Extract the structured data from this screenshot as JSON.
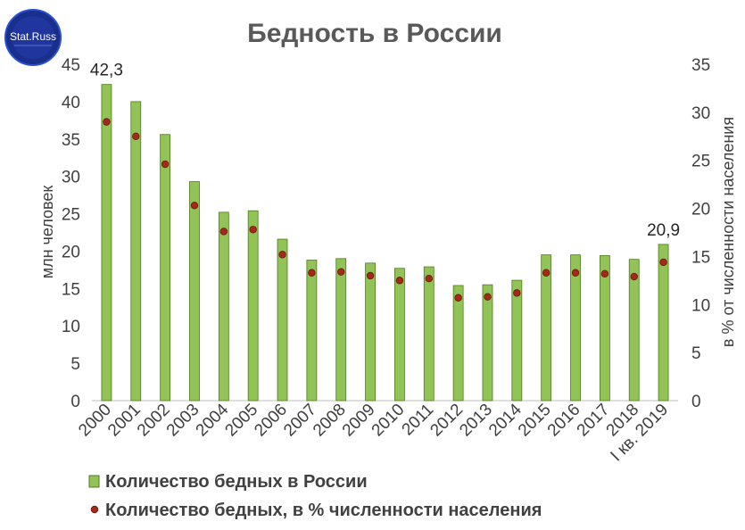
{
  "logo": {
    "text": "Stat.Russ"
  },
  "chart_data": {
    "type": "bar",
    "title": "Бедность в России",
    "categories": [
      "2000",
      "2001",
      "2002",
      "2003",
      "2004",
      "2005",
      "2006",
      "2007",
      "2008",
      "2009",
      "2010",
      "2011",
      "2012",
      "2013",
      "2014",
      "2015",
      "2016",
      "2017",
      "2018",
      "I кв. 2019"
    ],
    "series": [
      {
        "name": "Количество бедных в России",
        "kind": "bar",
        "axis": "left",
        "color": "#92c356",
        "values": [
          42.3,
          40.0,
          35.6,
          29.3,
          25.2,
          25.4,
          21.6,
          18.8,
          19.0,
          18.4,
          17.7,
          17.9,
          15.4,
          15.5,
          16.1,
          19.5,
          19.5,
          19.4,
          18.9,
          20.9
        ]
      },
      {
        "name": "Количество бедных, в % численности населения",
        "kind": "marker",
        "axis": "right",
        "color": "#a5281b",
        "values": [
          29.0,
          27.5,
          24.6,
          20.3,
          17.6,
          17.8,
          15.2,
          13.3,
          13.4,
          13.0,
          12.5,
          12.7,
          10.7,
          10.8,
          11.2,
          13.3,
          13.3,
          13.2,
          12.9,
          14.4
        ]
      }
    ],
    "ylabel": "млн человек",
    "y2label": "в % от численности населения",
    "ylim": [
      0,
      45
    ],
    "y2lim": [
      0,
      35
    ],
    "yticks": [
      "0",
      "5",
      "10",
      "15",
      "20",
      "25",
      "30",
      "35",
      "40",
      "45"
    ],
    "y2ticks": [
      "0",
      "5",
      "10",
      "15",
      "20",
      "25",
      "30",
      "35"
    ],
    "data_labels": [
      {
        "category": "2000",
        "text": "42,3"
      },
      {
        "category": "I кв. 2019",
        "text": "20,9"
      }
    ],
    "legend_position": "bottom",
    "grid": false
  }
}
